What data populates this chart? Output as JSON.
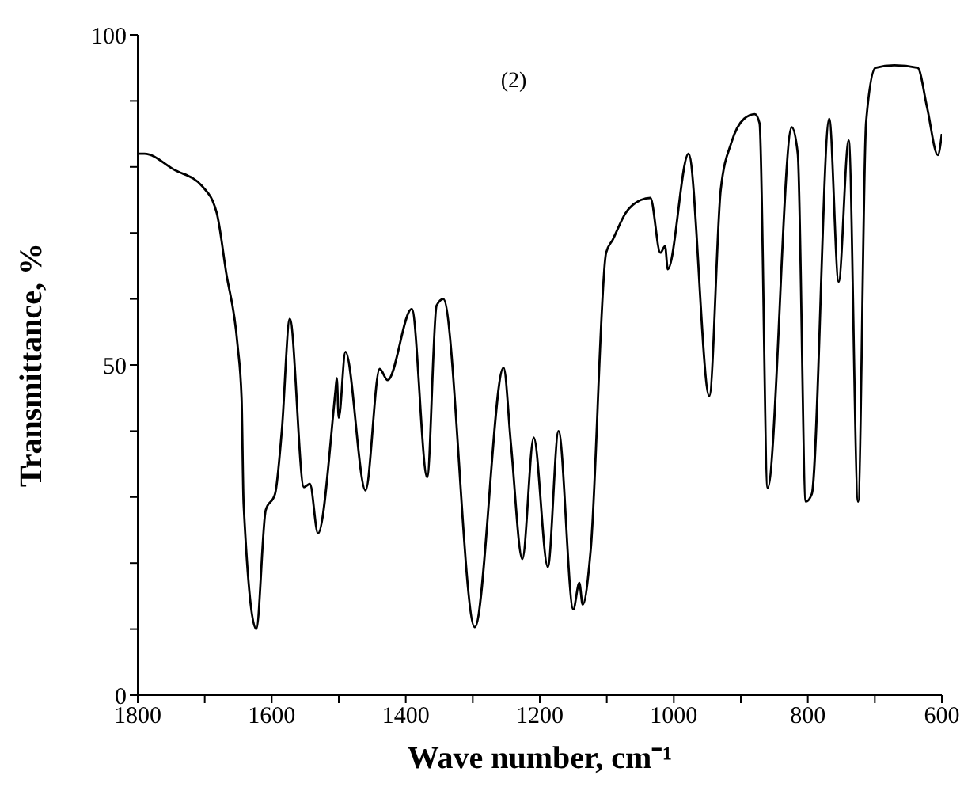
{
  "chart_data": {
    "type": "line",
    "xlabel": "Wave number, cm⁻¹",
    "ylabel": "Transmittance, %",
    "annotations": [
      "(2)"
    ],
    "xlim": [
      1800,
      600
    ],
    "ylim": [
      0,
      100
    ],
    "xticks": [
      1800,
      {
        "value": 1700,
        "label": null
      },
      1600,
      {
        "value": 1500,
        "label": null
      },
      1400,
      {
        "value": 1300,
        "label": null
      },
      1200,
      {
        "value": 1100,
        "label": null
      },
      1000,
      {
        "value": 900,
        "label": null
      },
      800,
      {
        "value": 700,
        "label": null
      },
      600
    ],
    "yticks": [
      0,
      {
        "value": 10,
        "label": null
      },
      {
        "value": 20,
        "label": null
      },
      {
        "value": 30,
        "label": null
      },
      {
        "value": 40,
        "label": null
      },
      50,
      {
        "value": 60,
        "label": null
      },
      {
        "value": 70,
        "label": null
      },
      {
        "value": 80,
        "label": null
      },
      {
        "value": 90,
        "label": null
      },
      100
    ],
    "marker": "none",
    "line_style": "solid",
    "series": [
      {
        "color": "#000000",
        "x": [
          1800,
          1790,
          1746,
          1703,
          1682,
          1668,
          1651,
          1645,
          1642,
          1623,
          1609,
          1595,
          1585,
          1573,
          1552,
          1543,
          1531,
          1505,
          1503,
          1500,
          1490,
          1460,
          1439,
          1427,
          1391,
          1368,
          1354,
          1344,
          1297,
          1254,
          1243,
          1226,
          1209,
          1188,
          1172,
          1150,
          1141,
          1136,
          1124,
          1101,
          1091,
          1072,
          1049,
          1035,
          1020,
          1013,
          1009,
          978,
          947,
          930,
          914,
          895,
          879,
          872,
          860,
          824,
          815,
          803,
          794,
          768,
          754,
          739,
          725,
          713,
          699,
          671,
          636,
          622,
          606,
          600
        ],
        "values": [
          82,
          82,
          79.6,
          77,
          73,
          64,
          53,
          45,
          29,
          10,
          28,
          30.5,
          40,
          57,
          31.5,
          32,
          24.5,
          46,
          48,
          42,
          52,
          31,
          49.4,
          47.7,
          58.5,
          33,
          59,
          60,
          10.3,
          49.6,
          38,
          20.6,
          39,
          19.4,
          40,
          13,
          17,
          13.7,
          22,
          67,
          69,
          73,
          75,
          75.3,
          67,
          68,
          64.5,
          82,
          45.3,
          76.5,
          83.7,
          87.3,
          88,
          86.6,
          31.4,
          86,
          82,
          29.3,
          30.5,
          87.3,
          62.6,
          84,
          29.3,
          86.8,
          95,
          95.4,
          95,
          89,
          81.8,
          85
        ]
      }
    ]
  }
}
